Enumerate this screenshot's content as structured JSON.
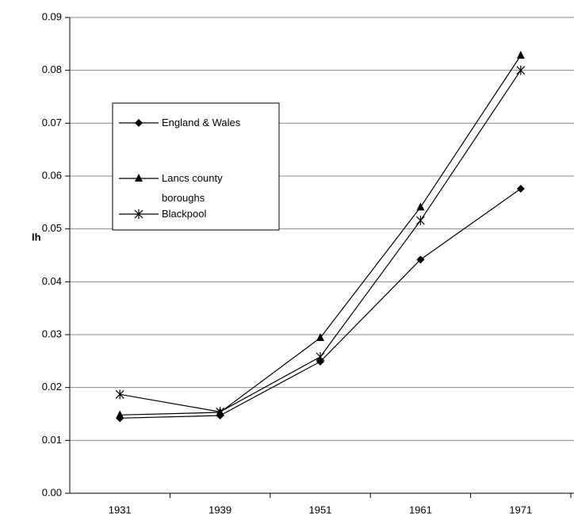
{
  "chart_data": {
    "type": "line",
    "ylabel": "Ih",
    "categories": [
      "1931",
      "1939",
      "1951",
      "1961",
      "1971"
    ],
    "series": [
      {
        "name": "England & Wales",
        "color": "#000000",
        "marker": "diamond",
        "values": [
          0.0142,
          0.0147,
          0.0249,
          0.0442,
          0.0576
        ]
      },
      {
        "name": "Lancs county boroughs",
        "color": "#000000",
        "marker": "triangle",
        "values": [
          0.0148,
          0.0153,
          0.0294,
          0.0541,
          0.0828
        ]
      },
      {
        "name": "Blackpool",
        "color": "#000000",
        "marker": "asterisk",
        "values": [
          0.0187,
          0.0154,
          0.0258,
          0.0516,
          0.08
        ]
      }
    ],
    "ylim": [
      0,
      0.09
    ],
    "yticks": [
      {
        "value": 0,
        "label": "0.00"
      },
      {
        "value": 0.01,
        "label": "0.01"
      },
      {
        "value": 0.02,
        "label": "0.02"
      },
      {
        "value": 0.03,
        "label": "0.03"
      },
      {
        "value": 0.04,
        "label": "0.04"
      },
      {
        "value": 0.05,
        "label": "0.05"
      },
      {
        "value": 0.06,
        "label": "0.06"
      },
      {
        "value": 0.07,
        "label": "0.07"
      },
      {
        "value": 0.08,
        "label": "0.08"
      },
      {
        "value": 0.09,
        "label": "0.09"
      }
    ],
    "grid": true
  }
}
